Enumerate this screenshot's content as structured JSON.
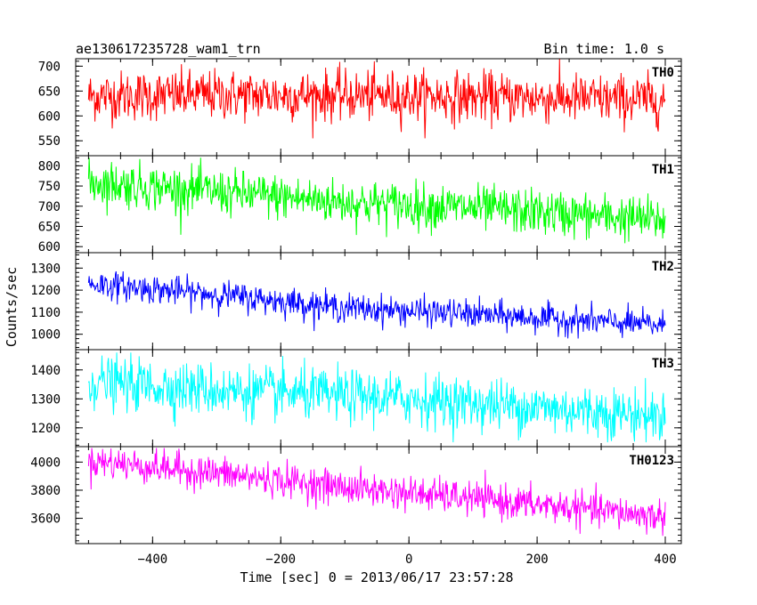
{
  "chart_data": {
    "type": "line",
    "title": "ae130617235728_wam1_trn",
    "bin_time": "Bin time: 1.0 s",
    "xlabel": "Time [sec] 0 = 2013/06/17 23:57:28",
    "ylabel": "Counts/sec",
    "xlim": [
      -520,
      425
    ],
    "x_range": [
      -500,
      400
    ],
    "x_step": 1,
    "x_ticks": [
      -400,
      -200,
      0,
      200,
      400
    ],
    "panels": [
      {
        "name": "TH0",
        "color": "#ff0000",
        "ylim": [
          520,
          715
        ],
        "y_ticks": [
          550,
          600,
          650,
          700
        ],
        "trend": [
          [
            -500,
            640
          ],
          [
            -300,
            642
          ],
          [
            0,
            640
          ],
          [
            200,
            636
          ],
          [
            400,
            632
          ]
        ],
        "noise_sd": 25,
        "y_range": [
          555,
          715
        ]
      },
      {
        "name": "TH1",
        "color": "#00ff00",
        "ylim": [
          585,
          825
        ],
        "y_ticks": [
          600,
          650,
          700,
          750,
          800
        ],
        "trend": [
          [
            -500,
            760
          ],
          [
            -300,
            735
          ],
          [
            -100,
            710
          ],
          [
            100,
            695
          ],
          [
            400,
            665
          ]
        ],
        "noise_sd": 28,
        "y_range": [
          590,
          820
        ]
      },
      {
        "name": "TH2",
        "color": "#0000ff",
        "ylim": [
          930,
          1370
        ],
        "y_ticks": [
          1000,
          1100,
          1200,
          1300
        ],
        "trend": [
          [
            -500,
            1230
          ],
          [
            -300,
            1180
          ],
          [
            -100,
            1120
          ],
          [
            100,
            1090
          ],
          [
            400,
            1040
          ]
        ],
        "noise_sd": 32,
        "y_range": [
          960,
          1340
        ]
      },
      {
        "name": "TH3",
        "color": "#00ffff",
        "ylim": [
          1135,
          1470
        ],
        "y_ticks": [
          1200,
          1300,
          1400
        ],
        "trend": [
          [
            -500,
            1360
          ],
          [
            -300,
            1330
          ],
          [
            0,
            1300
          ],
          [
            200,
            1270
          ],
          [
            400,
            1240
          ]
        ],
        "noise_sd": 45,
        "y_range": [
          1150,
          1460
        ]
      },
      {
        "name": "TH0123",
        "color": "#ff00ff",
        "ylim": [
          3420,
          4110
        ],
        "y_ticks": [
          3600,
          3800,
          4000
        ],
        "trend": [
          [
            -500,
            4010
          ],
          [
            -300,
            3920
          ],
          [
            -100,
            3820
          ],
          [
            100,
            3740
          ],
          [
            400,
            3610
          ]
        ],
        "noise_sd": 60,
        "y_range": [
          3440,
          4100
        ]
      }
    ]
  }
}
